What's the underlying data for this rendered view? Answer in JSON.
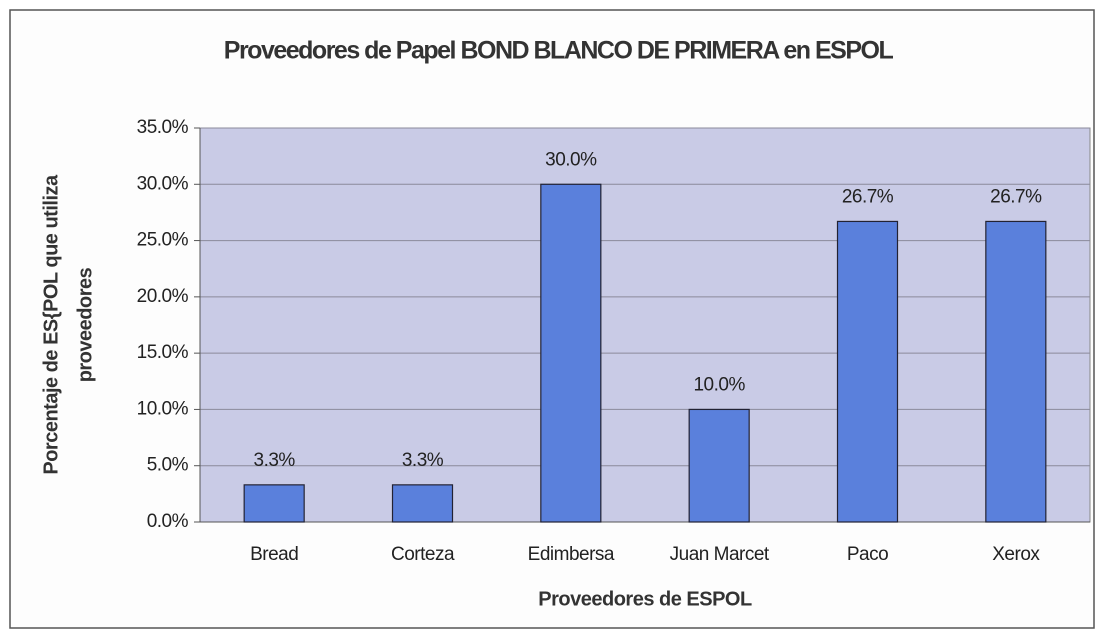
{
  "chart_data": {
    "type": "bar",
    "title": "Proveedores de Papel BOND BLANCO DE PRIMERA en ESPOL",
    "x_label": "Proveedores de ESPOL",
    "y_label": [
      "Porcentaje de ES{POL que utiliza",
      "proveedores"
    ],
    "categories": [
      "Bread",
      "Corteza",
      "Edimbersa",
      "Juan Marcet",
      "Paco",
      "Xerox"
    ],
    "values": [
      3.3,
      3.3,
      30.0,
      10.0,
      26.7,
      26.7
    ],
    "value_labels": [
      "3.3%",
      "3.3%",
      "30.0%",
      "10.0%",
      "26.7%",
      "26.7%"
    ],
    "color": "#5a80dc",
    "ylim": [
      0,
      35
    ],
    "yticks": [
      {
        "value": 0,
        "label": "0.0%"
      },
      {
        "value": 5,
        "label": "5.0%"
      },
      {
        "value": 10,
        "label": "10.0%"
      },
      {
        "value": 15,
        "label": "15.0%"
      },
      {
        "value": 20,
        "label": "20.0%"
      },
      {
        "value": 25,
        "label": "25.0%"
      },
      {
        "value": 30,
        "label": "30.0%"
      },
      {
        "value": 35,
        "label": "35.0%"
      }
    ],
    "grid": true
  }
}
